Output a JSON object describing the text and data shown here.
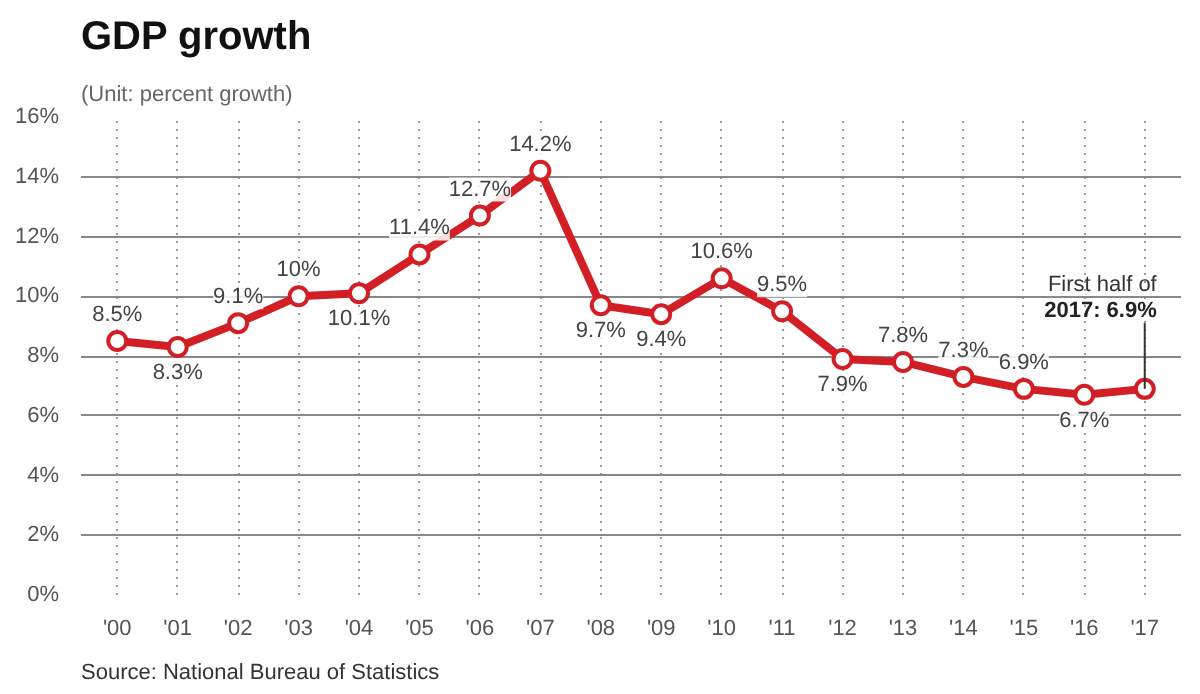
{
  "chart_data": {
    "type": "line",
    "title": "GDP growth",
    "subtitle": "(Unit: percent growth)",
    "categories": [
      "'00",
      "'01",
      "'02",
      "'03",
      "'04",
      "'05",
      "'06",
      "'07",
      "'08",
      "'09",
      "'10",
      "'11",
      "'12",
      "'13",
      "'14",
      "'15",
      "'16",
      "'17"
    ],
    "series": [
      {
        "color": "#d21f26",
        "values": [
          8.5,
          8.3,
          9.1,
          10,
          10.1,
          11.4,
          12.7,
          14.2,
          9.7,
          9.4,
          10.6,
          9.5,
          7.9,
          7.8,
          7.3,
          6.9,
          6.7,
          6.9
        ],
        "value_labels": [
          "8.5%",
          "8.3%",
          "9.1%",
          "10%",
          "10.1%",
          "11.4%",
          "12.7%",
          "14.2%",
          "9.7%",
          "9.4%",
          "10.6%",
          "9.5%",
          "7.9%",
          "7.8%",
          "7.3%",
          "6.9%",
          "6.7%",
          null
        ]
      }
    ],
    "ylim": [
      0,
      16
    ],
    "yticks": [
      {
        "value": 0,
        "label": "0%"
      },
      {
        "value": 2,
        "label": "2%"
      },
      {
        "value": 4,
        "label": "4%"
      },
      {
        "value": 6,
        "label": "6%"
      },
      {
        "value": 8,
        "label": "8%"
      },
      {
        "value": 10,
        "label": "10%"
      },
      {
        "value": 12,
        "label": "12%"
      },
      {
        "value": 14,
        "label": "14%"
      },
      {
        "value": 16,
        "label": "16%"
      }
    ],
    "grid": true,
    "marker": "circle",
    "line_style": "solid",
    "annotations": [
      {
        "text": "First half of 2017: 6.9%",
        "x": "'17",
        "y": 6.9
      },
      "Source: National Bureau of Statistics"
    ]
  }
}
